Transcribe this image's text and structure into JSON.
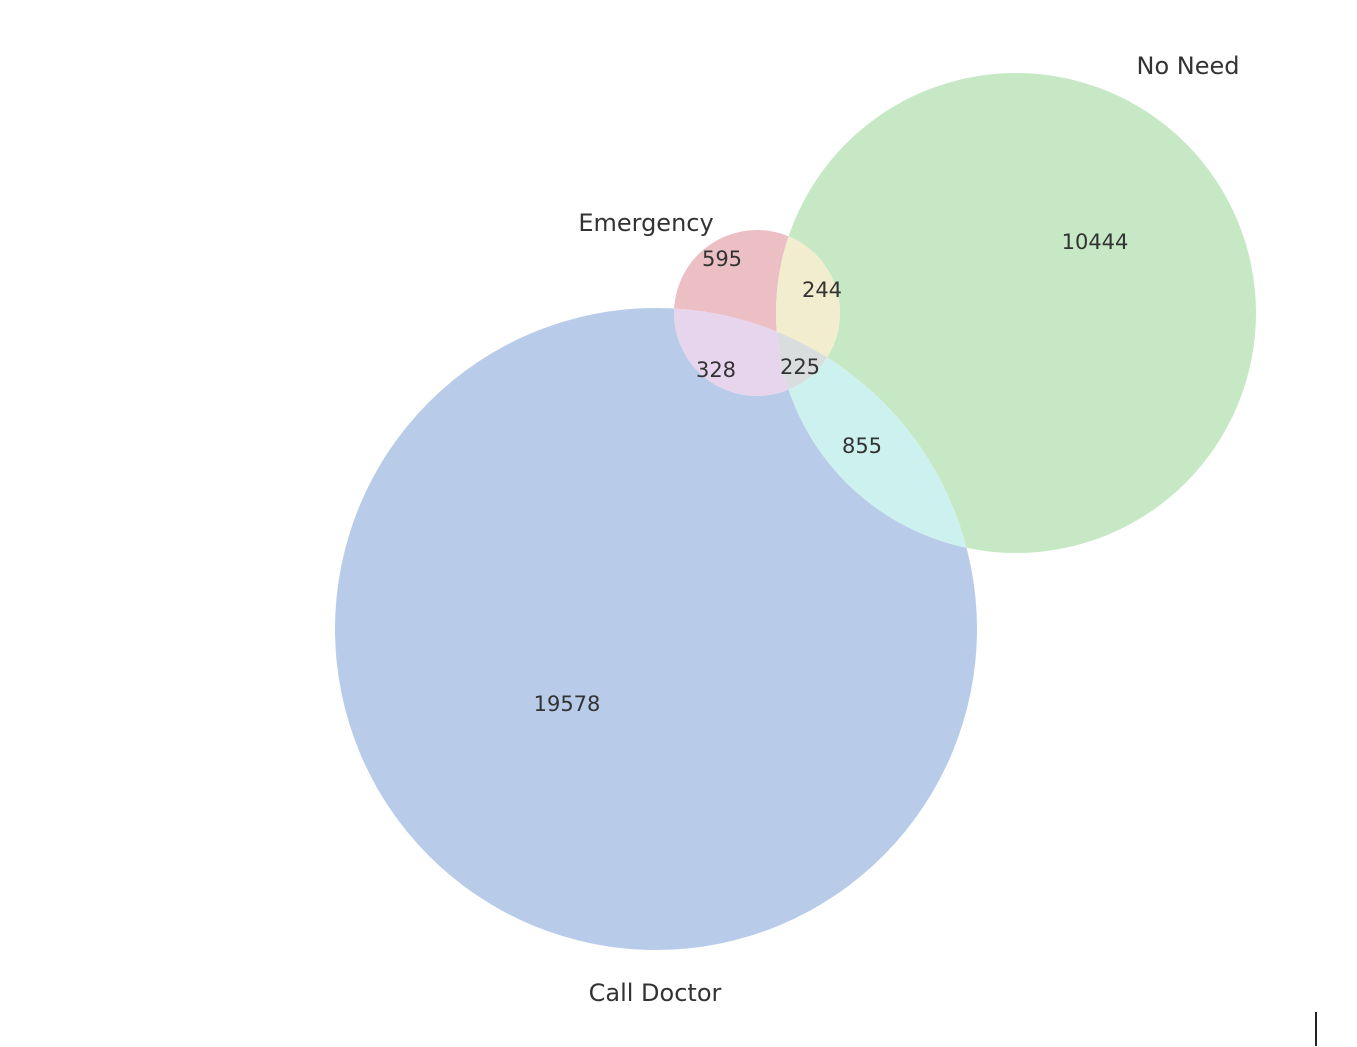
{
  "venn": {
    "sets": [
      {
        "id": "emergency",
        "label": "Emergency",
        "color": "#e8a2a6"
      },
      {
        "id": "no_need",
        "label": "No Need",
        "color": "#a9dca6"
      },
      {
        "id": "call_doctor",
        "label": "Call Doctor",
        "color": "#9fbbe2"
      }
    ],
    "regions": {
      "emergency_only": {
        "sets": [
          "Emergency"
        ],
        "value": "595",
        "color": "#ebbfc4"
      },
      "no_need_only": {
        "sets": [
          "No Need"
        ],
        "value": "10444",
        "color": "#c6e8c4"
      },
      "call_doctor_only": {
        "sets": [
          "Call Doctor"
        ],
        "value": "19578",
        "color": "#b8cce9"
      },
      "emergency_no_need": {
        "sets": [
          "Emergency",
          "No Need"
        ],
        "value": "244",
        "color": "#f2edcf"
      },
      "emergency_call_doctor": {
        "sets": [
          "Emergency",
          "Call Doctor"
        ],
        "value": "328",
        "color": "#e6d5ec"
      },
      "no_need_call_doctor": {
        "sets": [
          "No Need",
          "Call Doctor"
        ],
        "value": "855",
        "color": "#cdf1ee"
      },
      "all_three": {
        "sets": [
          "Emergency",
          "No Need",
          "Call Doctor"
        ],
        "value": "225",
        "color": "#dadddd"
      }
    }
  }
}
